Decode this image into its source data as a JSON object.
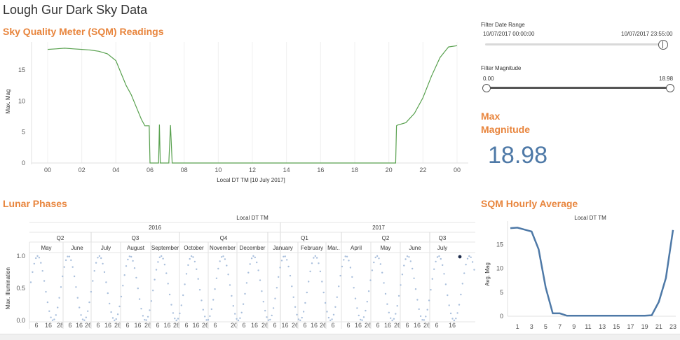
{
  "dashboard": {
    "title": "Lough Gur Dark Sky Data"
  },
  "sqm": {
    "title": "Sky Quality Meter (SQM) Readings",
    "ylabel": "Max. Mag",
    "xlabel": "Local DT TM [10 July 2017]",
    "line_color": "#59a14f"
  },
  "filters": {
    "date_range": {
      "label": "Filter Date Range",
      "start": "10/07/2017 00:00:00",
      "end": "10/07/2017 23:55:00"
    },
    "magnitude": {
      "label": "Filter Magnitude",
      "min": "0.00",
      "max": "18.98"
    }
  },
  "max_mag": {
    "title_line1": "Max",
    "title_line2": "Magnitude",
    "value": "18.98",
    "value_color": "#4e79a7"
  },
  "lunar": {
    "title": "Lunar Phases",
    "header": "Local DT TM",
    "ylabel": "Max. Illumination",
    "years": [
      "2016",
      "2017"
    ],
    "quarters": [
      "Q2",
      "Q3",
      "Q4",
      "Q1",
      "Q2",
      "Q3"
    ],
    "months": [
      "May",
      "June",
      "July",
      "August",
      "September",
      "October",
      "November",
      "December",
      "January",
      "February",
      "Mar..",
      "April",
      "May",
      "June",
      "July"
    ],
    "day_ticks": [
      [
        "6",
        "16",
        "28"
      ],
      [
        "6",
        "16",
        "26"
      ],
      [
        "6",
        "16",
        "26"
      ],
      [
        "6",
        "16",
        "26"
      ],
      [
        "6",
        "16",
        "26"
      ],
      [
        "6",
        "16",
        "26"
      ],
      [
        "6",
        "20"
      ],
      [
        "6",
        "16",
        "26"
      ],
      [
        "6",
        "16",
        "26"
      ],
      [
        "6",
        "16",
        "26"
      ],
      [
        "6"
      ],
      [
        "6",
        "16",
        "26"
      ],
      [
        "6",
        "16",
        "26"
      ],
      [
        "6",
        "16",
        "26"
      ],
      [
        "6",
        "16"
      ]
    ],
    "yticks": [
      "0.0",
      "0.5",
      "1.0"
    ],
    "dot_color": "#a9bfdc",
    "highlight_color": "#1f2d4d"
  },
  "hourly": {
    "title": "SQM Hourly Average",
    "header": "Local DT TM",
    "ylabel": "Avg. Mag",
    "line_color": "#4e79a7"
  },
  "chart_data": [
    {
      "type": "line",
      "title": "Sky Quality Meter (SQM) Readings",
      "xlabel": "Local DT TM [10 July 2017]",
      "ylabel": "Max. Mag",
      "x_ticks": [
        "00",
        "02",
        "04",
        "06",
        "08",
        "10",
        "12",
        "14",
        "16",
        "18",
        "20",
        "22",
        "00"
      ],
      "y_ticks": [
        "0",
        "5",
        "10",
        "15"
      ],
      "ylim": [
        0,
        19.5
      ],
      "x": [
        0,
        0.5,
        1,
        1.5,
        2,
        2.5,
        3,
        3.5,
        4,
        4.3,
        4.6,
        4.9,
        5.2,
        5.5,
        5.7,
        5.85,
        5.95,
        6.0,
        6.2,
        6.5,
        6.55,
        6.6,
        7.1,
        7.2,
        7.3,
        7.5,
        8,
        10,
        12,
        14,
        16,
        18,
        20,
        20.4,
        20.45,
        20.5,
        21,
        21.5,
        22,
        22.5,
        23,
        23.5,
        24
      ],
      "y": [
        18.3,
        18.4,
        18.5,
        18.4,
        18.3,
        18.2,
        18.0,
        17.6,
        16.5,
        14.5,
        12.5,
        11.0,
        9.0,
        7.0,
        6.0,
        6.0,
        6.0,
        0,
        0,
        0,
        6.2,
        0,
        0,
        6.1,
        0,
        0,
        0,
        0,
        0,
        0,
        0,
        0,
        0,
        0,
        6.0,
        6.1,
        6.5,
        8.0,
        10.5,
        14.0,
        17.0,
        18.7,
        18.9
      ]
    },
    {
      "type": "scatter",
      "title": "Lunar Phases",
      "ylabel": "Max. Illumination",
      "series": [
        {
          "values_description_free": true
        }
      ],
      "x_range": [
        "2016-05",
        "2017-07"
      ],
      "ylim": [
        0,
        1.0
      ],
      "cycle_days": 29.5
    },
    {
      "type": "line",
      "title": "SQM Hourly Average",
      "xlabel": "Local DT TM",
      "ylabel": "Avg. Mag",
      "x": [
        0,
        1,
        2,
        3,
        4,
        5,
        6,
        7,
        8,
        9,
        10,
        11,
        12,
        13,
        14,
        15,
        16,
        17,
        18,
        19,
        20,
        21,
        22,
        23
      ],
      "y": [
        18.4,
        18.5,
        18.1,
        17.7,
        14.0,
        6.0,
        0.6,
        0.6,
        0.1,
        0.1,
        0.1,
        0.1,
        0.1,
        0.1,
        0.1,
        0.1,
        0.1,
        0.1,
        0.1,
        0.1,
        0.2,
        3.0,
        8.0,
        18.0
      ],
      "x_ticks": [
        "1",
        "3",
        "5",
        "7",
        "9",
        "11",
        "13",
        "15",
        "17",
        "19",
        "21",
        "23"
      ],
      "y_ticks": [
        "0",
        "5",
        "10",
        "15"
      ],
      "ylim": [
        0,
        19
      ]
    }
  ]
}
